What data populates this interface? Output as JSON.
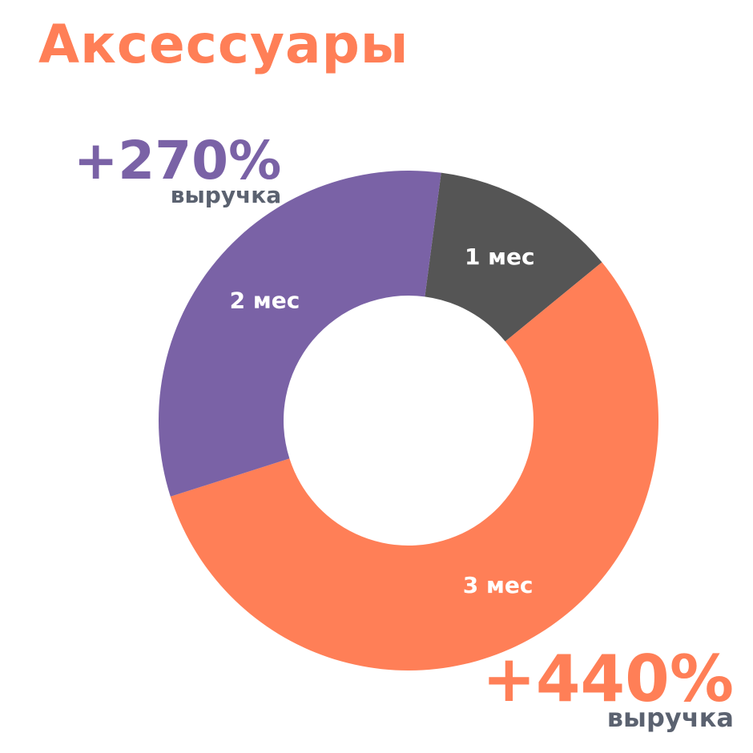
{
  "chart_data": {
    "type": "pie",
    "variant": "donut",
    "title": "Аксессуары",
    "slices": [
      {
        "label": "1 мес",
        "value": 12,
        "color": "#555555"
      },
      {
        "label": "3 мес",
        "value": 56,
        "color": "#ff7f57"
      },
      {
        "label": "2 мес",
        "value": 32,
        "color": "#7a62a6"
      }
    ],
    "annotations": [
      {
        "value": "+270%",
        "caption": "выручка",
        "color": "#7a62a6"
      },
      {
        "value": "+440%",
        "caption": "выручка",
        "color": "#ff7f57"
      }
    ]
  }
}
